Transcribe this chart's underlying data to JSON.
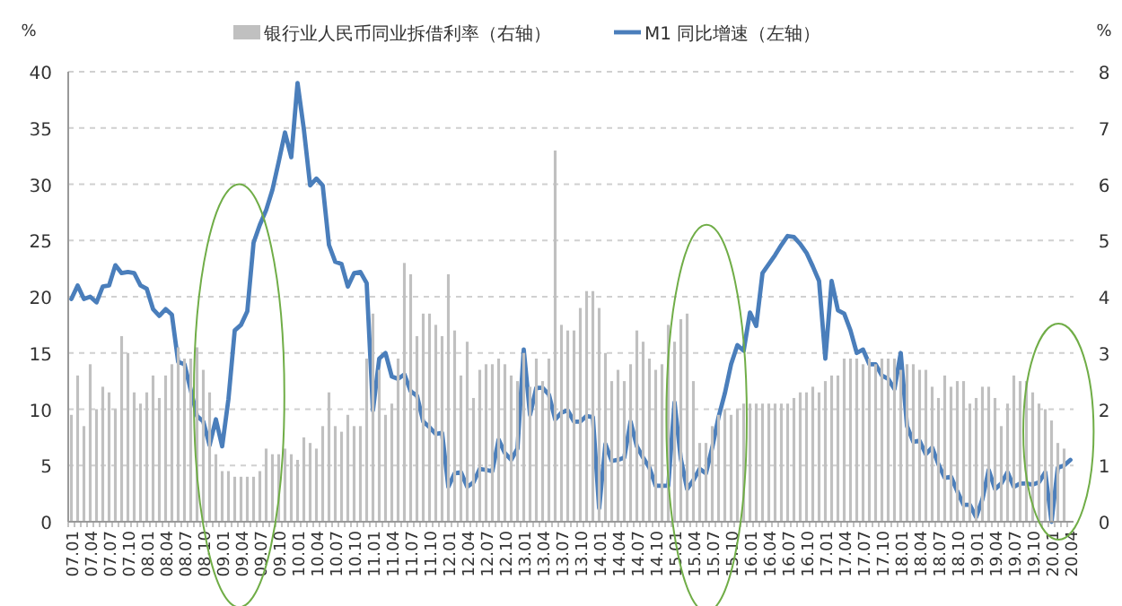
{
  "chart_data": {
    "type": "bar",
    "ylabel": "%",
    "y2label": "%",
    "ylim": [
      0,
      40
    ],
    "yticks": [
      0,
      5,
      10,
      15,
      20,
      25,
      30,
      35,
      40
    ],
    "y2lim": [
      0,
      8
    ],
    "y2ticks": [
      0,
      1,
      2,
      3,
      4,
      5,
      6,
      7,
      8
    ],
    "grid": "y",
    "legend": "top",
    "categories": [
      "07.01",
      null,
      null,
      "07.04",
      null,
      null,
      "07.07",
      null,
      null,
      "07.10",
      null,
      null,
      "08.01",
      null,
      null,
      "08.04",
      null,
      null,
      "08.07",
      null,
      null,
      "08.10",
      null,
      null,
      "09.01",
      null,
      null,
      "09.04",
      null,
      null,
      "09.07",
      null,
      null,
      "09.10",
      null,
      null,
      "10.01",
      null,
      null,
      "10.04",
      null,
      null,
      "10.07",
      null,
      null,
      "10.10",
      null,
      null,
      "11.01",
      null,
      null,
      "11.04",
      null,
      null,
      "11.07",
      null,
      null,
      "11.10",
      null,
      null,
      "12.01",
      null,
      null,
      "12.04",
      null,
      null,
      "12.07",
      null,
      null,
      "12.10",
      null,
      null,
      "13.01",
      null,
      null,
      "13.04",
      null,
      null,
      "13.07",
      null,
      null,
      "13.10",
      null,
      null,
      "14.01",
      null,
      null,
      "14.04",
      null,
      null,
      "14.07",
      null,
      null,
      "14.10",
      null,
      null,
      "15.01",
      null,
      null,
      "15.04",
      null,
      null,
      "15.07",
      null,
      null,
      "15.10",
      null,
      null,
      "16.01",
      null,
      null,
      "16.04",
      null,
      null,
      "16.07",
      null,
      null,
      "16.10",
      null,
      null,
      "17.01",
      null,
      null,
      "17.04",
      null,
      null,
      "17.07",
      null,
      null,
      "17.10",
      null,
      null,
      "18.01",
      null,
      null,
      "18.04",
      null,
      null,
      "18.07",
      null,
      null,
      "18.10",
      null,
      null,
      "19.01",
      null,
      null,
      "19.04",
      null,
      null,
      "19.07",
      null,
      null,
      "19.10",
      null,
      null,
      "20.01",
      null,
      null,
      "20.04"
    ],
    "series": [
      {
        "name": "银行业人民币同业拆借利率（右轴）",
        "axis": "y2",
        "color": "#c0c0c0",
        "values": [
          1.9,
          2.6,
          1.7,
          2.8,
          2.0,
          2.4,
          2.3,
          2.0,
          3.3,
          3.0,
          2.3,
          2.1,
          2.3,
          2.6,
          2.2,
          2.6,
          2.8,
          3.1,
          2.9,
          2.9,
          3.1,
          2.7,
          2.3,
          1.2,
          0.9,
          0.9,
          0.8,
          0.8,
          0.8,
          0.8,
          0.9,
          1.3,
          1.2,
          1.2,
          1.3,
          1.2,
          1.1,
          1.5,
          1.4,
          1.3,
          1.7,
          2.3,
          1.7,
          1.6,
          1.9,
          1.7,
          1.7,
          2.9,
          3.7,
          2.7,
          1.9,
          2.1,
          2.9,
          4.6,
          4.4,
          3.3,
          3.7,
          3.7,
          3.5,
          3.3,
          4.4,
          3.4,
          2.6,
          3.2,
          2.2,
          2.7,
          2.8,
          2.8,
          2.9,
          2.8,
          2.6,
          2.5,
          3.0,
          2.4,
          2.9,
          2.5,
          2.9,
          6.6,
          3.5,
          3.4,
          3.4,
          3.8,
          4.1,
          4.1,
          3.8,
          3.0,
          2.5,
          2.7,
          2.5,
          2.8,
          3.4,
          3.2,
          2.9,
          2.7,
          2.8,
          3.5,
          3.2,
          3.6,
          3.7,
          2.5,
          1.4,
          1.4,
          1.7,
          1.9,
          2.0,
          1.9,
          2.0,
          2.1,
          2.1,
          2.1,
          2.1,
          2.1,
          2.1,
          2.1,
          2.1,
          2.2,
          2.3,
          2.3,
          2.4,
          2.3,
          2.5,
          2.6,
          2.6,
          2.9,
          2.9,
          2.9,
          2.8,
          2.9,
          2.8,
          2.9,
          2.9,
          2.9,
          2.7,
          2.8,
          2.8,
          2.7,
          2.7,
          2.4,
          2.2,
          2.6,
          2.4,
          2.5,
          2.5,
          2.1,
          2.2,
          2.4,
          2.4,
          2.2,
          1.7,
          2.1,
          2.6,
          2.5,
          2.5,
          2.3,
          2.1,
          2.0,
          1.8,
          1.4,
          1.3,
          null
        ]
      },
      {
        "name": "M1 同比增速（左轴）",
        "type": "line",
        "color": "#4a7ebb",
        "values": [
          19.8,
          21.0,
          19.8,
          20.0,
          19.5,
          20.9,
          21.0,
          22.8,
          22.1,
          22.2,
          22.1,
          21.0,
          20.7,
          18.9,
          18.3,
          18.9,
          18.4,
          14.2,
          14.0,
          11.7,
          9.4,
          8.9,
          6.8,
          9.1,
          6.7,
          10.9,
          17.0,
          17.5,
          18.7,
          24.8,
          26.4,
          27.7,
          29.5,
          32.0,
          34.6,
          32.4,
          39.0,
          34.9,
          29.9,
          30.5,
          29.9,
          24.6,
          23.1,
          22.9,
          20.9,
          22.1,
          22.2,
          21.2,
          9.9,
          14.5,
          15.0,
          12.9,
          12.7,
          13.1,
          11.6,
          11.2,
          8.9,
          8.4,
          7.8,
          7.9,
          3.1,
          4.3,
          4.4,
          3.1,
          3.5,
          4.7,
          4.6,
          4.5,
          7.3,
          6.1,
          5.5,
          6.5,
          15.3,
          9.5,
          11.9,
          11.9,
          11.3,
          9.1,
          9.7,
          9.9,
          8.9,
          8.9,
          9.4,
          9.3,
          1.2,
          6.9,
          5.4,
          5.5,
          5.7,
          8.9,
          6.7,
          5.7,
          4.8,
          3.2,
          3.2,
          3.2,
          10.6,
          5.6,
          2.9,
          3.7,
          4.7,
          4.3,
          6.6,
          9.3,
          11.4,
          14.0,
          15.7,
          15.2,
          18.6,
          17.4,
          22.1,
          22.9,
          23.7,
          24.6,
          25.4,
          25.3,
          24.7,
          23.9,
          22.7,
          21.4,
          14.5,
          21.4,
          18.8,
          18.5,
          17.0,
          15.0,
          15.3,
          14.0,
          14.0,
          13.0,
          12.7,
          11.8,
          15.0,
          8.5,
          7.1,
          7.2,
          6.0,
          6.6,
          5.1,
          3.9,
          4.0,
          2.7,
          1.5,
          1.5,
          0.4,
          2.0,
          4.6,
          2.9,
          3.4,
          4.4,
          3.1,
          3.4,
          3.4,
          3.3,
          3.5,
          4.4,
          0.0,
          4.8,
          5.0,
          5.5
        ]
      }
    ]
  }
}
